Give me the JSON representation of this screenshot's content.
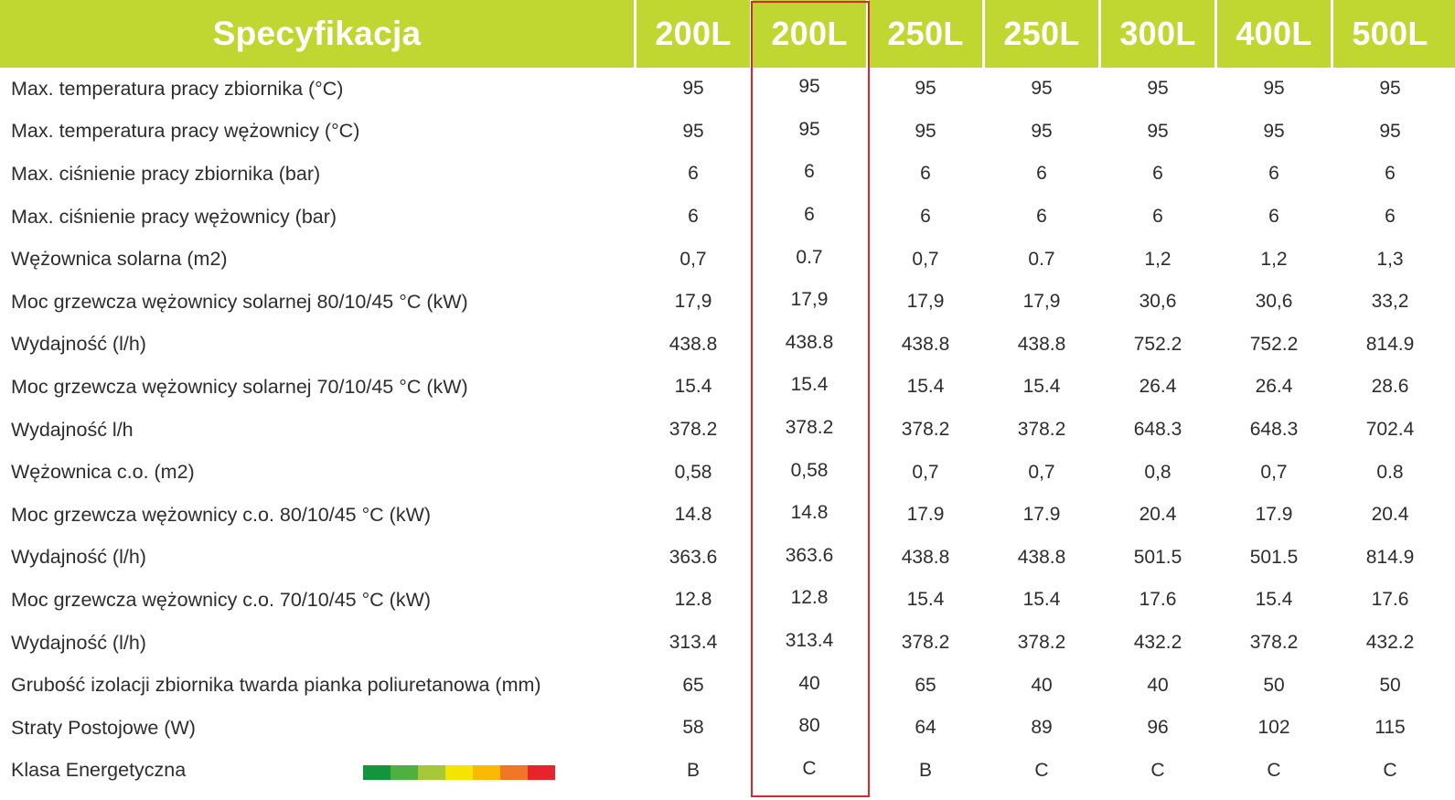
{
  "header": {
    "title": "Specyfikacja",
    "columns": [
      "200L",
      "200L",
      "250L",
      "250L",
      "300L",
      "400L",
      "500L"
    ]
  },
  "rows": [
    {
      "label": "Max. temperatura pracy zbiornika (°C)",
      "values": [
        "95",
        "95",
        "95",
        "95",
        "95",
        "95",
        "95"
      ]
    },
    {
      "label": "Max. temperatura pracy wężownicy (°C)",
      "values": [
        "95",
        "95",
        "95",
        "95",
        "95",
        "95",
        "95"
      ]
    },
    {
      "label": "Max. ciśnienie pracy zbiornika (bar)",
      "values": [
        "6",
        "6",
        "6",
        "6",
        "6",
        "6",
        "6"
      ]
    },
    {
      "label": "Max. ciśnienie pracy wężownicy (bar)",
      "values": [
        "6",
        "6",
        "6",
        "6",
        "6",
        "6",
        "6"
      ]
    },
    {
      "label": "Wężownica solarna (m2)",
      "values": [
        "0,7",
        "0.7",
        "0,7",
        "0.7",
        "1,2",
        "1,2",
        "1,3"
      ]
    },
    {
      "label": "Moc grzewcza wężownicy solarnej 80/10/45 °C (kW)",
      "values": [
        "17,9",
        "17,9",
        "17,9",
        "17,9",
        "30,6",
        "30,6",
        "33,2"
      ]
    },
    {
      "label": "Wydajność (l/h)",
      "values": [
        "438.8",
        "438.8",
        "438.8",
        "438.8",
        "752.2",
        "752.2",
        "814.9"
      ]
    },
    {
      "label": "Moc grzewcza wężownicy solarnej 70/10/45 °C (kW)",
      "values": [
        "15.4",
        "15.4",
        "15.4",
        "15.4",
        "26.4",
        "26.4",
        "28.6"
      ]
    },
    {
      "label": "Wydajność l/h",
      "values": [
        "378.2",
        "378.2",
        "378.2",
        "378.2",
        "648.3",
        "648.3",
        "702.4"
      ]
    },
    {
      "label": "Wężownica c.o. (m2)",
      "values": [
        "0,58",
        "0,58",
        "0,7",
        "0,7",
        "0,8",
        "0,7",
        "0.8"
      ]
    },
    {
      "label": "Moc grzewcza wężownicy c.o. 80/10/45 °C (kW)",
      "values": [
        "14.8",
        "14.8",
        "17.9",
        "17.9",
        "20.4",
        "17.9",
        "20.4"
      ]
    },
    {
      "label": "Wydajność (l/h)",
      "values": [
        "363.6",
        "363.6",
        "438.8",
        "438.8",
        "501.5",
        "501.5",
        "814.9"
      ]
    },
    {
      "label": "Moc grzewcza wężownicy c.o. 70/10/45 °C (kW)",
      "values": [
        "12.8",
        "12.8",
        "15.4",
        "15.4",
        "17.6",
        "15.4",
        "17.6"
      ]
    },
    {
      "label": "Wydajność (l/h)",
      "values": [
        "313.4",
        "313.4",
        "378.2",
        "378.2",
        "432.2",
        "378.2",
        "432.2"
      ]
    },
    {
      "label": "Grubość izolacji zbiornika twarda pianka poliuretanowa (mm)",
      "values": [
        "65",
        "40",
        "65",
        "40",
        "40",
        "50",
        "50"
      ]
    },
    {
      "label": "Straty Postojowe (W)",
      "values": [
        "58",
        "80",
        "64",
        "89",
        "96",
        "102",
        "115"
      ]
    },
    {
      "label": "Klasa Energetyczna",
      "values": [
        "B",
        "C",
        "B",
        "C",
        "C",
        "C",
        "C"
      ]
    }
  ],
  "energy_scale_colors": [
    "#11963e",
    "#4eb13f",
    "#a6c838",
    "#f3e500",
    "#fbb800",
    "#f07524",
    "#e5252a"
  ],
  "colors": {
    "header_bg": "#bfd730",
    "header_text": "#ffffff",
    "highlight": "#e0242b"
  }
}
